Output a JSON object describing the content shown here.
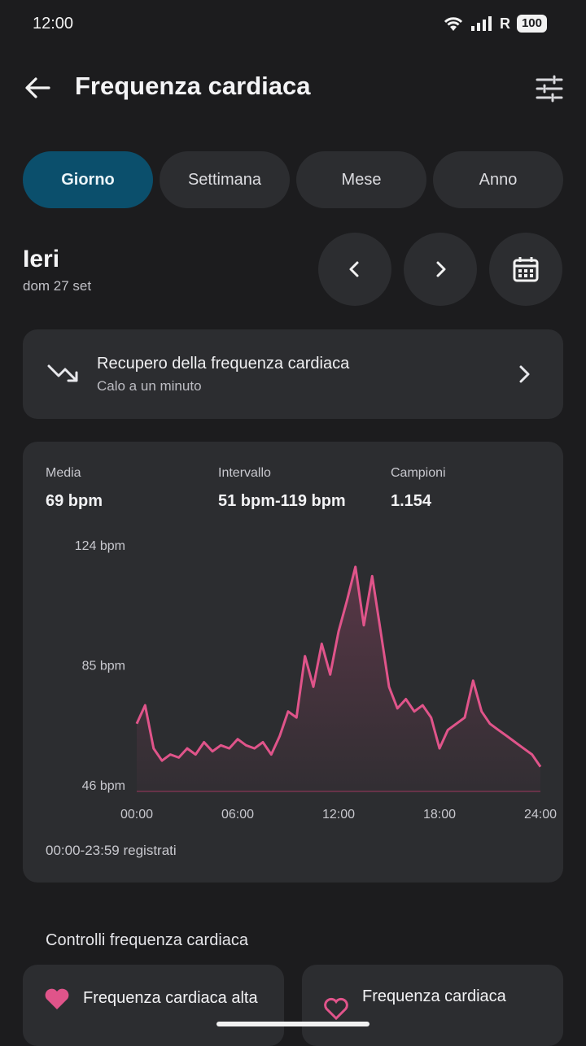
{
  "status": {
    "time": "12:00",
    "battery": "100",
    "network_label": "R"
  },
  "header": {
    "title": "Frequenza cardiaca"
  },
  "tabs": [
    {
      "label": "Giorno",
      "active": true
    },
    {
      "label": "Settimana",
      "active": false
    },
    {
      "label": "Mese",
      "active": false
    },
    {
      "label": "Anno",
      "active": false
    }
  ],
  "date": {
    "title": "Ieri",
    "subtitle": "dom 27 set"
  },
  "recovery": {
    "title": "Recupero della frequenza cardiaca",
    "subtitle": "Calo a un minuto"
  },
  "stats": {
    "average": {
      "label": "Media",
      "value": "69 bpm"
    },
    "range": {
      "label": "Intervallo",
      "value": "51 bpm-119 bpm"
    },
    "samples": {
      "label": "Campioni",
      "value": "1.154"
    }
  },
  "chart_data": {
    "type": "line",
    "ylabels": [
      "124 bpm",
      "85 bpm",
      "46 bpm"
    ],
    "yticks": [
      124,
      85,
      46
    ],
    "ylim": [
      46,
      124
    ],
    "xlabels": [
      "00:00",
      "06:00",
      "12:00",
      "18:00",
      "24:00"
    ],
    "xlim": [
      0,
      24
    ],
    "series": [
      {
        "color": "#e0548a",
        "x": [
          0,
          0.5,
          1,
          1.5,
          2,
          2.5,
          3,
          3.5,
          4,
          4.5,
          5,
          5.5,
          6,
          6.5,
          7,
          7.5,
          8,
          8.5,
          9,
          9.5,
          10,
          10.5,
          11,
          11.5,
          12,
          12.5,
          13,
          13.5,
          14,
          14.5,
          15,
          15.5,
          16,
          16.5,
          17,
          17.5,
          18,
          18.5,
          19,
          19.5,
          20,
          20.5,
          21,
          21.5,
          22,
          22.5,
          23,
          23.5,
          24
        ],
        "y": [
          68,
          74,
          60,
          56,
          58,
          57,
          60,
          58,
          62,
          59,
          61,
          60,
          63,
          61,
          60,
          62,
          58,
          64,
          72,
          70,
          90,
          80,
          94,
          84,
          98,
          108,
          119,
          100,
          116,
          98,
          80,
          73,
          76,
          72,
          74,
          70,
          60,
          66,
          68,
          70,
          82,
          72,
          68,
          66,
          64,
          62,
          60,
          58,
          54
        ]
      }
    ]
  },
  "range_note": "00:00-23:59 registrati",
  "checks_section": {
    "title": "Controlli frequenza cardiaca"
  },
  "checks": [
    {
      "label": "Frequenza cardiaca alta"
    },
    {
      "label": "Frequenza cardiaca"
    }
  ],
  "colors": {
    "accent_tab": "#0b4f6c",
    "line": "#e0548a",
    "card": "#2c2d30",
    "background": "#1c1c1e"
  }
}
